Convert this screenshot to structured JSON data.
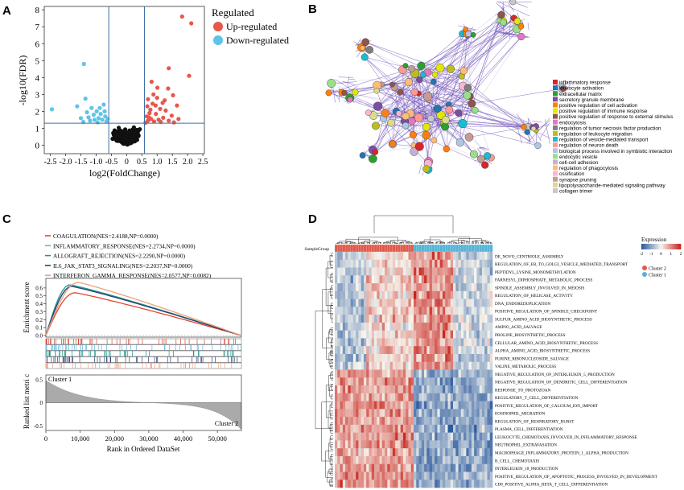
{
  "panel_labels": {
    "a": "A",
    "b": "B",
    "c": "C",
    "d": "D"
  },
  "colors": {
    "up": "#e8574b",
    "down": "#5ec4e8",
    "ns": "#111111",
    "threshold": "#3b6ea5",
    "network_edge": "#6a4bb5",
    "network_edge_light": "#c9bfe6",
    "heat_low": "#2c5aa0",
    "heat_mid": "#f6f6ee",
    "heat_high": "#c8231d",
    "cluster1": "#56b4d6",
    "cluster2": "#e05a4a"
  },
  "chart_data": [
    {
      "panel": "A",
      "type": "scatter",
      "xlabel": "log2(FoldChange)",
      "ylabel": "-log10(FDR)",
      "xlim": [
        -2.7,
        2.55
      ],
      "ylim": [
        -0.5,
        8.2
      ],
      "xticks": [
        "-2.5",
        "-2.0",
        "-1.5",
        "-1.0",
        "-0.5",
        "0",
        "0.5",
        "1.0",
        "1.5",
        "2.0",
        "2.5"
      ],
      "xtick_values": [
        -2.5,
        -2.0,
        -1.5,
        -1.0,
        -0.5,
        0,
        0.5,
        1.0,
        1.5,
        2.0,
        2.5
      ],
      "yticks": [
        "0",
        "1",
        "2",
        "3",
        "4",
        "5",
        "6",
        "7",
        "8"
      ],
      "vlines": [
        -0.585,
        0.585
      ],
      "hline": 1.3,
      "legend_title": "Regulated",
      "legend_position": "right",
      "series": [
        {
          "name": "Up-regulated",
          "points": [
            [
              2.12,
              7.2
            ],
            [
              1.82,
              7.6
            ],
            [
              2.05,
              4.1
            ],
            [
              1.38,
              4.55
            ],
            [
              0.82,
              3.75
            ],
            [
              1.01,
              3.4
            ],
            [
              1.36,
              3.35
            ],
            [
              1.18,
              2.5
            ],
            [
              1.52,
              2.95
            ],
            [
              0.7,
              2.72
            ],
            [
              0.85,
              2.45
            ],
            [
              0.95,
              2.35
            ],
            [
              1.65,
              2.35
            ],
            [
              1.1,
              2.15
            ],
            [
              1.28,
              2.05
            ],
            [
              0.75,
              1.9
            ],
            [
              0.96,
              1.85
            ],
            [
              1.48,
              1.75
            ],
            [
              0.66,
              1.7
            ],
            [
              1.2,
              1.62
            ],
            [
              0.8,
              1.55
            ],
            [
              1.05,
              1.5
            ],
            [
              0.7,
              1.45
            ],
            [
              1.38,
              1.45
            ],
            [
              0.9,
              1.4
            ],
            [
              1.55,
              1.35
            ],
            [
              0.62,
              1.33
            ],
            [
              1.12,
              1.38
            ],
            [
              0.78,
              2.1
            ],
            [
              0.68,
              2.3
            ],
            [
              1.0,
              2.8
            ],
            [
              0.88,
              3.0
            ],
            [
              1.25,
              2.65
            ],
            [
              0.73,
              1.65
            ],
            [
              1.7,
              1.55
            ]
          ]
        },
        {
          "name": "Down-regulated",
          "points": [
            [
              -1.4,
              4.8
            ],
            [
              -0.98,
              2.0
            ],
            [
              -1.15,
              2.2
            ],
            [
              -1.35,
              2.75
            ],
            [
              -1.62,
              2.3
            ],
            [
              -2.45,
              2.12
            ],
            [
              -0.75,
              2.4
            ],
            [
              -0.85,
              1.85
            ],
            [
              -0.92,
              1.6
            ],
            [
              -1.05,
              1.5
            ],
            [
              -1.2,
              1.45
            ],
            [
              -0.7,
              1.7
            ],
            [
              -0.66,
              1.4
            ],
            [
              -0.8,
              1.5
            ],
            [
              -1.3,
              1.95
            ],
            [
              -1.5,
              1.6
            ],
            [
              -0.95,
              1.35
            ],
            [
              -1.08,
              1.8
            ],
            [
              -0.72,
              2.0
            ],
            [
              -0.88,
              2.2
            ],
            [
              -1.25,
              1.65
            ],
            [
              -0.62,
              1.55
            ],
            [
              -1.42,
              1.38
            ]
          ]
        }
      ]
    },
    {
      "panel": "B",
      "type": "network",
      "legend": [
        {
          "label": "inflammatory response",
          "color": "#d62728"
        },
        {
          "label": "leukocyte activation",
          "color": "#1f77b4"
        },
        {
          "label": "extracellular matrix",
          "color": "#2ca02c"
        },
        {
          "label": "secretory granule membrane",
          "color": "#7b4ea3"
        },
        {
          "label": "positive regulation of cell activation",
          "color": "#ff7f0e"
        },
        {
          "label": "positive regulation of immune response",
          "color": "#e6e600"
        },
        {
          "label": "positive regulation of response to external stimulus",
          "color": "#8c564b"
        },
        {
          "label": "endocytosis",
          "color": "#e377c2"
        },
        {
          "label": "regulation of tumor necrosis factor production",
          "color": "#7f7f7f"
        },
        {
          "label": "regulation of leukocyte migration",
          "color": "#bcbd22"
        },
        {
          "label": "regulation of vesicle-mediated transport",
          "color": "#17becf"
        },
        {
          "label": "regulation of neuron death",
          "color": "#ff9896"
        },
        {
          "label": "biological process involved in symbiotic interaction",
          "color": "#aec7e8"
        },
        {
          "label": "endocytic vesicle",
          "color": "#98df8a"
        },
        {
          "label": "cell-cell adhesion",
          "color": "#c5b0d5"
        },
        {
          "label": "regulation of phagocytosis",
          "color": "#ffbb78"
        },
        {
          "label": "ossification",
          "color": "#f7b6d2"
        },
        {
          "label": "synapse pruning",
          "color": "#c49c94"
        },
        {
          "label": "lipopolysaccharide-mediated signaling pathway",
          "color": "#dbdb8d"
        },
        {
          "label": "collagen trimer",
          "color": "#c7c7c7"
        }
      ]
    },
    {
      "panel": "C",
      "type": "line",
      "title": "",
      "ylabel": "Enrichment score",
      "ylabel2": "Ranked list metri c",
      "xlabel": "Rank in Ordered DataSet",
      "xlim": [
        0,
        57000
      ],
      "xticks": [
        "0",
        "10,000",
        "20,000",
        "30,000",
        "40,000",
        "50,000"
      ],
      "xtick_values": [
        0,
        10000,
        20000,
        30000,
        40000,
        50000
      ],
      "ylim": [
        0,
        0.7
      ],
      "yticks": [
        "0.0",
        "0.1",
        "0.2",
        "0.3",
        "0.4",
        "0.5",
        "0.6"
      ],
      "ytick_values": [
        0,
        0.1,
        0.2,
        0.3,
        0.4,
        0.5,
        0.6
      ],
      "rank_yticks": [
        "0.5",
        "0",
        "-0.5"
      ],
      "rank_ytick_values": [
        0.5,
        0,
        -0.5
      ],
      "cluster_labels": [
        "Cluster 1",
        "Cluster 2"
      ],
      "series": [
        {
          "name": "COAGULATION(NES=2.4188,NP=0.0000)",
          "color": "#e0472e",
          "peak_x": 8500,
          "peak_es": 0.54
        },
        {
          "name": "INFLAMMATORY_RESPONSE(NES=2.2734,NP=0.0000)",
          "color": "#58b7e0",
          "peak_x": 7800,
          "peak_es": 0.63
        },
        {
          "name": "ALLOGRAFT_REJECTION(NES=2.2290,NP=0.0000)",
          "color": "#1a9a8a",
          "peak_x": 7000,
          "peak_es": 0.64
        },
        {
          "name": "IL6_JAK_STAT3_SIGNALING(NES=2.2037,NP=0.0000)",
          "color": "#2e3f73",
          "peak_x": 7500,
          "peak_es": 0.62
        },
        {
          "name": "INTERFERON_GAMMA_RESPONSE(NES=2.0577,NP=0.0082)",
          "color": "#f0a07a",
          "peak_x": 9500,
          "peak_es": 0.67
        }
      ]
    },
    {
      "panel": "D",
      "type": "heatmap",
      "legend_title": "Expression",
      "scale_ticks": [
        "-2",
        "-1",
        "0",
        "1",
        "2"
      ],
      "samplegroup_label": "SampleGroup",
      "groups": [
        {
          "name": "Cluster 2",
          "fraction": 0.5
        },
        {
          "name": "Cluster 1",
          "fraction": 0.5
        }
      ],
      "rows": [
        "DE_NOVO_CENTRIOLE_ASSEMBLY",
        "REGULATION_OF_ER_TO_GOLGI_VESICLE_MEDIATED_TRANSPORT",
        "PEPTIDYL_LYSINE_MONOMETHYLATION",
        "FARNESYL_DIPHOSPHATE_METABOLIC_PROCESS",
        "SPINDLE_ASSEMBLY_INVOLVED_IN_MEIOSIS",
        "REGULATION_OF_HELICASE_ACTIVITY",
        "DNA_ENDOREDUPLICATION",
        "POSITIVE_REGULATION_OF_SPINDLE_CHECKPOINT",
        "SULFUR_AMINO_ACID_BIOSYNTHETIC_PROCESS",
        "AMINO_ACID_SALVAGE",
        "PROLINE_BIOSYNTHETIC_PROCESS",
        "CELLULAR_AMINO_ACID_BIOSYNTHETIC_PROCESS",
        "ALPHA_AMINO_ACID_BIOSYNTHETIC_PROCESS",
        "PURINE_RIBONUCLEOSIDE_SALVAGE",
        "VALINE_METABOLIC_PROCESS",
        "NEGATIVE_REGULATION_OF_INTERLEUKIN_5_PRODUCTION",
        "NEGATIVE_REGULATION_OF_DENDRITIC_CELL_DIFFERENTIATION",
        "RESPONSE_TO_PROTOZOAN",
        "REGULATORY_T_CELL_DIFFERENTIATION",
        "POSITIVE_REGULATION_OF_CALCIUM_ION_IMPORT",
        "EOSINOPHIL_MIGRATION",
        "REGULATION_OF_RESPIRATORY_BURST",
        "PLASMA_CELL_DIFFERENTIATION",
        "LEUKOCYTE_CHEMOTAXIS_INVOLVED_IN_INFLAMMATORY_RESPONSE",
        "NEUTROPHIL_EXTRAVASATION",
        "MACROPHAGE_INFLAMMATORY_PROTEIN_1_ALPHA_PRODUCTION",
        "B_CELL_CHEMOTAXIS",
        "INTERLEUKIN_18_PRODUCTION",
        "POSITIVE_REGULATION_OF_APOPTOTIC_PROCESS_INVOLVED_IN_DEVELOPMENT",
        "CD8_POSITIVE_ALPHA_BETA_T_CELL_DIFFERENTIATION"
      ],
      "upper_block_rows": 15
    }
  ]
}
